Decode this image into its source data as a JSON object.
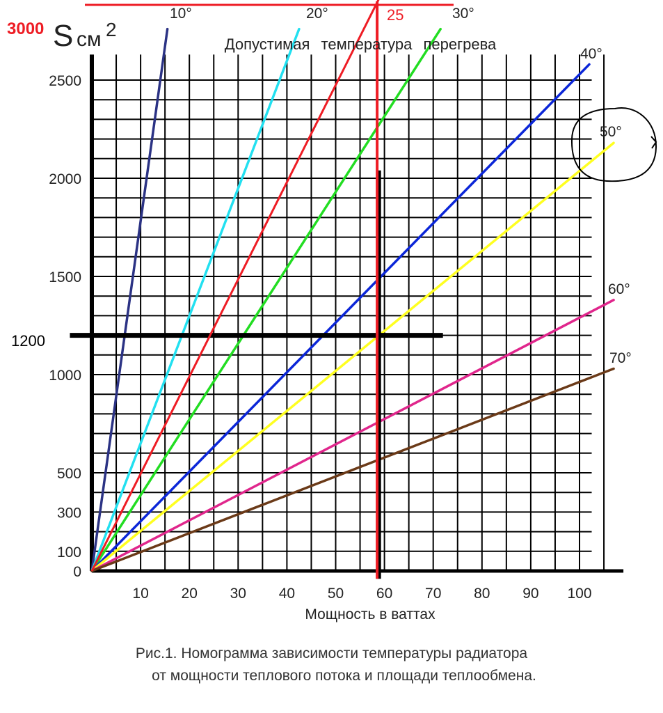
{
  "chart_data": {
    "type": "line",
    "title": "Допустимая температура перегрева",
    "ylabel_main": "S",
    "ylabel_unit": "см",
    "ylabel_exp": "2",
    "xlabel": "Мощность в ваттах",
    "xlim": [
      0,
      110
    ],
    "ylim": [
      0,
      2600
    ],
    "x_ticks": [
      "10",
      "20",
      "30",
      "40",
      "50",
      "60",
      "70",
      "80",
      "90",
      "100"
    ],
    "y_ticks": [
      "0",
      "100",
      "300",
      "500",
      "1000",
      "1500",
      "2000",
      "2500"
    ],
    "grid": true,
    "series": [
      {
        "name": "10°",
        "color": "#2b3284",
        "points": [
          [
            0,
            0
          ],
          [
            15.5,
            2760
          ]
        ]
      },
      {
        "name": "20°",
        "color": "#22e0f0",
        "points": [
          [
            0,
            0
          ],
          [
            42.5,
            2760
          ]
        ]
      },
      {
        "name": "30°",
        "color": "#22dd22",
        "points": [
          [
            0,
            0
          ],
          [
            71.5,
            2760
          ]
        ]
      },
      {
        "name": "40°",
        "color": "#0b26d8",
        "points": [
          [
            0,
            0
          ],
          [
            102,
            2580
          ]
        ]
      },
      {
        "name": "50°",
        "color": "#ffff20",
        "points": [
          [
            0,
            0
          ],
          [
            107,
            2180
          ]
        ]
      },
      {
        "name": "60°",
        "color": "#e0268c",
        "points": [
          [
            0,
            0
          ],
          [
            107,
            1380
          ]
        ]
      },
      {
        "name": "70°",
        "color": "#6b3a18",
        "points": [
          [
            0,
            0
          ],
          [
            107,
            1030
          ]
        ]
      }
    ],
    "annotations": {
      "red_line_label": "25",
      "red_top_label": "3000",
      "marker_y_label": "1200",
      "red_color": "#ee1c24",
      "red_line_points": [
        [
          0,
          0
        ],
        [
          59,
          2920
        ]
      ],
      "vertical_red_x": 58.5,
      "marker_x": 60,
      "marker_y": 1200
    }
  },
  "caption": {
    "line1": "Рис.1. Номограмма зависимости температуры радиатора",
    "line2": "от мощности теплового потока и площади теплообмена."
  }
}
